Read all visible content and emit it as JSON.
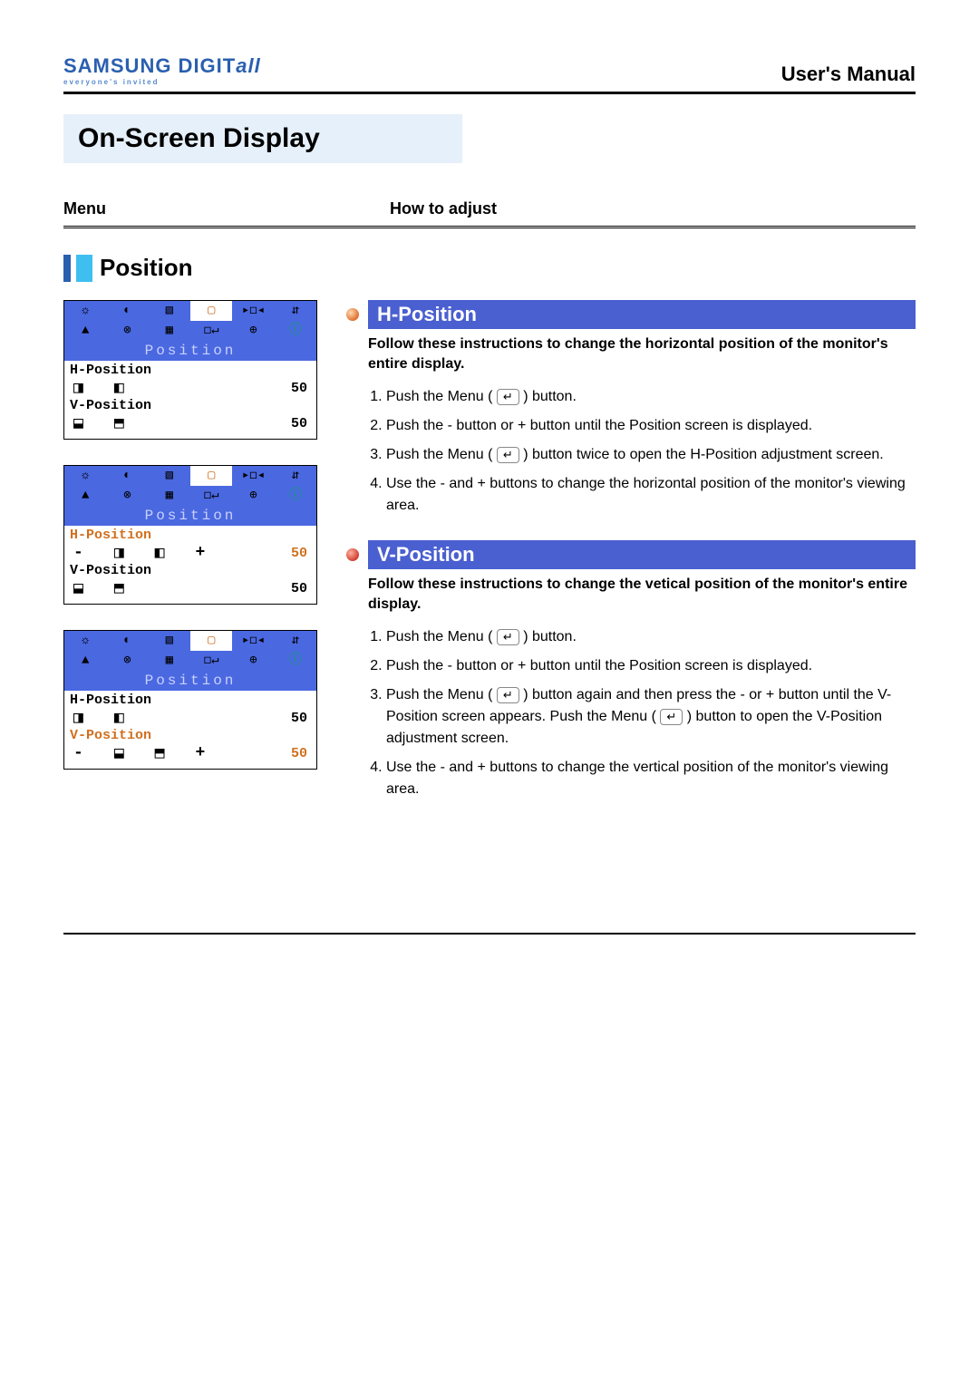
{
  "brand": {
    "name": "SAMSUNG DIGIT",
    "suffix": "all",
    "tagline": "everyone's invited"
  },
  "doc_title": "User's Manual",
  "page_title": "On-Screen Display",
  "columns": {
    "left": "Menu",
    "right": "How to adjust"
  },
  "section": "Position",
  "osd": {
    "title": "Position",
    "h_label": "H-Position",
    "v_label": "V-Position",
    "value_h": "50",
    "value_v": "50",
    "icons_row1": [
      "☼",
      "◐",
      "▧",
      "▢",
      "▸◻◂",
      "⇵"
    ],
    "icons_row2": [
      "▲",
      "⊗",
      "▦",
      "◻↵",
      "⊕",
      "ⓘ"
    ],
    "highlight_index": 3,
    "green_index": 11
  },
  "h_position": {
    "title": "H-Position",
    "bullet_color": "#e07030",
    "desc": "Follow these instructions to change the horizontal position of the monitor's entire display.",
    "steps": [
      "Push the Menu ( [↵] ) button.",
      "Push the - button or + button until the Position screen is displayed.",
      "Push the Menu ( [↵] ) button twice to open the H-Position adjustment screen.",
      "Use the - and + buttons to change the horizontal position of the monitor's viewing area."
    ]
  },
  "v_position": {
    "title": "V-Position",
    "bullet_color": "#d04030",
    "desc": "Follow these instructions to change the vetical position of the monitor's entire display.",
    "steps": [
      "Push the Menu ( [↵] ) button.",
      "Push the - button or + button until the Position screen is displayed.",
      "Push the Menu ( [↵] ) button again and then press the - or + button until the V-Position screen appears. Push the Menu ( [↵] ) button to open the V-Position adjustment screen.",
      "Use the - and + buttons to change the vertical position of the monitor's viewing area."
    ]
  },
  "colors": {
    "header_band_bg": "#e6f0fa",
    "osd_blue": "#4a68e0",
    "sub_band_bg": "#4a5fd0",
    "active_orange": "#d07020"
  }
}
